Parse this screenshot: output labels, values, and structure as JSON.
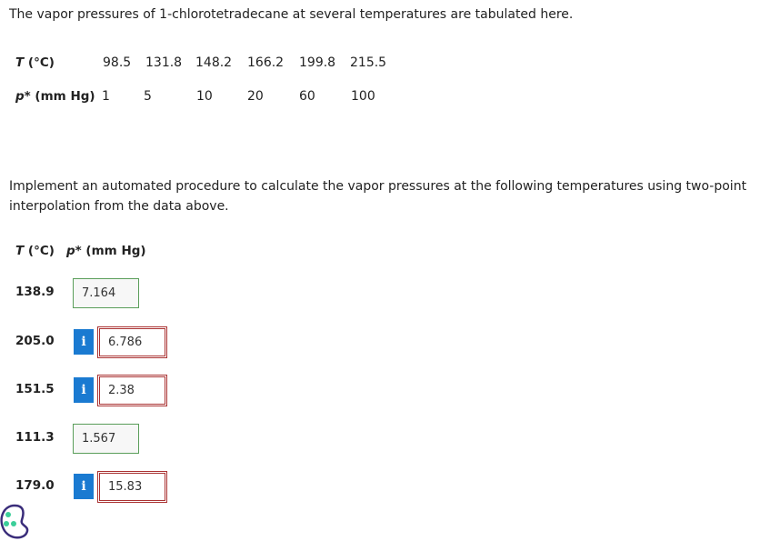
{
  "intro": "The vapor pressures of 1-chlorotetradecane at several temperatures are tabulated here.",
  "data_table": {
    "t_label": {
      "symbol": "T",
      "unit": "(°C)"
    },
    "p_label": {
      "symbol": "p*",
      "unit": "(mm Hg)"
    },
    "temperatures": [
      "98.5",
      "131.8",
      "148.2",
      "166.2",
      "199.8",
      "215.5"
    ],
    "pressures": [
      "1",
      "5",
      "10",
      "20",
      "60",
      "100"
    ]
  },
  "instructions": "Implement an automated procedure to calculate the vapor pressures at the following temperatures using two-point interpolation from the data above.",
  "answers": {
    "t_label": {
      "symbol": "T",
      "unit": "(°C)"
    },
    "p_label": {
      "symbol": "p*",
      "unit": "(mm Hg)"
    },
    "info_icon": "i",
    "rows": [
      {
        "temperature": "138.9",
        "answer": "7.164",
        "status": "correct"
      },
      {
        "temperature": "205.0",
        "answer": "6.786",
        "status": "incorrect"
      },
      {
        "temperature": "151.5",
        "answer": "2.38",
        "status": "incorrect"
      },
      {
        "temperature": "111.3",
        "answer": "1.567",
        "status": "correct"
      },
      {
        "temperature": "179.0",
        "answer": "15.83",
        "status": "incorrect"
      }
    ]
  }
}
